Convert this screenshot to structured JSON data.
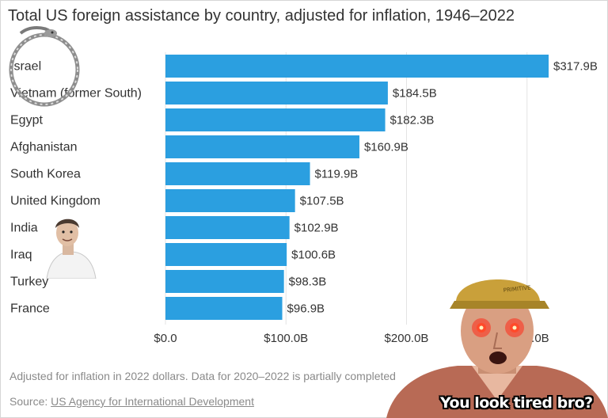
{
  "chart_data": {
    "type": "bar",
    "orientation": "horizontal",
    "title": "Total US foreign assistance by country, adjusted for inflation, 1946–2022",
    "categories": [
      "Israel",
      "Vietnam (former South)",
      "Egypt",
      "Afghanistan",
      "South Korea",
      "United Kingdom",
      "India",
      "Iraq",
      "Turkey",
      "France"
    ],
    "values": [
      317.9,
      184.5,
      182.3,
      160.9,
      119.9,
      107.5,
      102.9,
      100.6,
      98.3,
      96.9
    ],
    "value_labels": [
      "$317.9B",
      "$184.5B",
      "$182.3B",
      "$160.9B",
      "$119.9B",
      "$107.5B",
      "$102.9B",
      "$100.6B",
      "$98.3B",
      "$96.9B"
    ],
    "xticks": [
      0,
      100,
      200,
      300
    ],
    "xtick_labels": [
      "$0.0",
      "$100.0B",
      "$200.0B",
      "$300.0B"
    ],
    "xlim": [
      0,
      317.9
    ],
    "grid": true,
    "bar_color": "#2b9fe0"
  },
  "footer": {
    "note": "Adjusted for inflation in 2022 dollars. Data for 2020–2022 is partially completed",
    "source_prefix": "Source: ",
    "source_link": "US Agency for International Development"
  },
  "meme": {
    "caption": "You look tired bro?",
    "hat_text": "PRIMITIVE"
  }
}
